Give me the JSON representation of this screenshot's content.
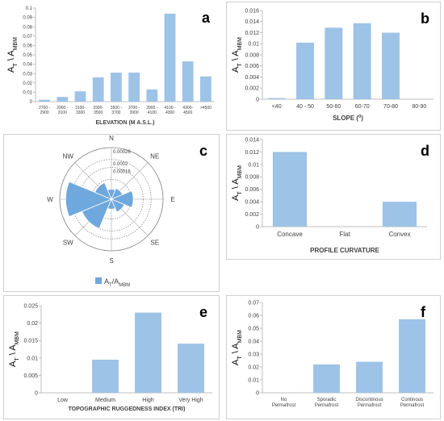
{
  "chart_data": [
    {
      "panel_letter": "a",
      "type": "bar",
      "title": "",
      "xlabel": "ELEVATION (M A.S.L.)",
      "ylabel": "AT \\ AMBM",
      "ylabel_main": "A",
      "ylabel_sub1": "T",
      "ylabel_mid": " \\ A",
      "ylabel_sub2": "MBM",
      "ylim": [
        0,
        0.1
      ],
      "yticks": [
        "0",
        "0.01",
        "0.02",
        "0.03",
        "0.04",
        "0.05",
        "0.06",
        "0.07",
        "0.08",
        "0.09",
        "0.1"
      ],
      "categories": [
        "2700 - 2900",
        "2900 - 3100",
        "3100- 3300",
        "3300- 3500",
        "3500 - 3700",
        "3700 - 3900",
        "3900 - 4100",
        "4100 - 4300",
        "4300- 4500",
        ">4500"
      ],
      "values": [
        0.002,
        0.005,
        0.011,
        0.026,
        0.031,
        0.031,
        0.013,
        0.094,
        0.043,
        0.027
      ],
      "color": "#9dc3e6",
      "grid": false
    },
    {
      "panel_letter": "b",
      "type": "bar",
      "title": "",
      "xlabel": "SLOPE (0)",
      "xlabel_main": "SLOPE (",
      "xlabel_sup": "0",
      "xlabel_end": ")",
      "ylabel": "AT \\ AMBM",
      "ylabel_main": "A",
      "ylabel_sub1": "T",
      "ylabel_mid": " \\ A",
      "ylabel_sub2": "MBM",
      "ylim": [
        0,
        0.016
      ],
      "yticks": [
        "0",
        "0.002",
        "0.004",
        "0.006",
        "0.008",
        "0.01",
        "0.012",
        "0.014",
        "0.016"
      ],
      "categories": [
        "<40",
        "40 - 50",
        "50-60",
        "60-70",
        "70-80",
        "80-90"
      ],
      "values": [
        0.0002,
        0.0102,
        0.0129,
        0.0137,
        0.012,
        0
      ],
      "color": "#9dc3e6",
      "grid": false
    },
    {
      "panel_letter": "c",
      "type": "rose",
      "title": "",
      "directions": [
        "N",
        "NE",
        "E",
        "SE",
        "S",
        "SW",
        "W",
        "NW"
      ],
      "rings": [
        "0.00026",
        "0.0002",
        "0.00016"
      ],
      "ring_values": [
        0.00026,
        0.0002,
        0.00016,
        0.0001,
        5e-05
      ],
      "rmax": 0.00026,
      "values": [
        5e-05,
        6e-05,
        0.00011,
        7e-05,
        5e-05,
        0.00016,
        0.00023,
        9e-05
      ],
      "legend_main": "A",
      "legend_sub1": "T",
      "legend_mid": "/A",
      "legend_sub2": "MBM",
      "legend": "AT/AMBM",
      "legend_position": "bottom",
      "color": "#6fa8dc"
    },
    {
      "panel_letter": "d",
      "type": "bar",
      "title": "",
      "xlabel": "PROFILE CURVATURE",
      "ylabel": "AT \\ AMBM",
      "ylabel_main": "A",
      "ylabel_sub1": "T",
      "ylabel_mid": " \\ A",
      "ylabel_sub2": "MBM",
      "ylim": [
        0,
        0.014
      ],
      "yticks": [
        "0",
        "0.002",
        "0.004",
        "0.006",
        "0.008",
        "0.01",
        "0.012",
        "0.014"
      ],
      "categories": [
        "Concave",
        "Flat",
        "Convex"
      ],
      "values": [
        0.012,
        0,
        0.004
      ],
      "color": "#9dc3e6",
      "grid": false
    },
    {
      "panel_letter": "e",
      "type": "bar",
      "title": "",
      "xlabel": "TOPOGRAPHIC RUGGEDNESS INDEX (TRI)",
      "ylabel": "AT \\ AMBM",
      "ylabel_main": "A",
      "ylabel_sub1": "T",
      "ylabel_mid": " \\ A",
      "ylabel_sub2": "MBM",
      "ylim": [
        0,
        0.025
      ],
      "yticks": [
        "0",
        "0.005",
        "0.01",
        "0.015",
        "0.02",
        "0.025"
      ],
      "categories": [
        "Low",
        "Medium",
        "High",
        "Very High"
      ],
      "values": [
        0,
        0.0095,
        0.023,
        0.0141
      ],
      "color": "#9dc3e6",
      "grid": false
    },
    {
      "panel_letter": "f",
      "type": "bar",
      "title": "",
      "xlabel": "",
      "ylabel": "AT \\ AMBM",
      "ylabel_main": "A",
      "ylabel_sub1": "T",
      "ylabel_mid": " \\ A",
      "ylabel_sub2": "MBM",
      "ylim": [
        0,
        0.07
      ],
      "yticks": [
        "0",
        "0.01",
        "0.02",
        "0.03",
        "0.04",
        "0.05",
        "0.06",
        "0.07"
      ],
      "categories": [
        "No Permafrost",
        "Sporadic Permafrost",
        "Discontinous Permafrost",
        "Continous Permafrost"
      ],
      "values": [
        0,
        0.022,
        0.024,
        0.057
      ],
      "color": "#9dc3e6",
      "grid": false
    }
  ]
}
